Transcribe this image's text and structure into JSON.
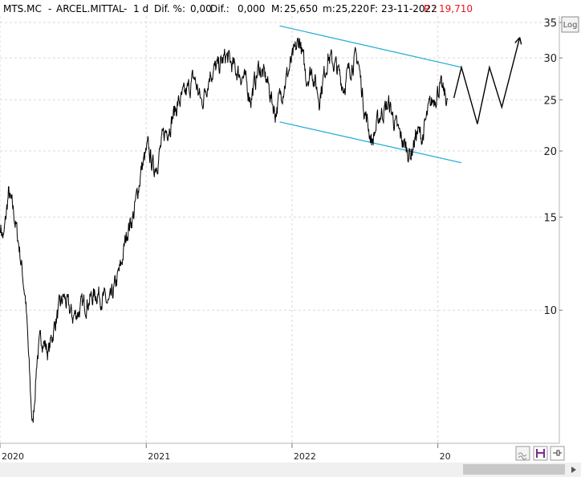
{
  "header": {
    "ticker": "MTS.MC",
    "name": "ARCEL.MITTAL",
    "period": "1 d",
    "dif_pct_label": "Dif. %:",
    "dif_pct": "0,00",
    "dif_label": "Dif.:",
    "dif": "0,000",
    "max_label": "M:",
    "max": "25,650",
    "min_label": "m:",
    "min": "25,220",
    "date_label": "F:",
    "date": "23-11-2022",
    "price_label": "P :",
    "price": "19,710"
  },
  "buttons": {
    "log_label": "Log"
  },
  "chart_data": {
    "type": "line",
    "y_scale": "log",
    "ylim": [
      5.6,
      36
    ],
    "y_ticks": [
      10,
      15,
      20,
      25,
      30,
      35
    ],
    "x_ticks": [
      "2020",
      "2021",
      "2022",
      "20"
    ],
    "xlim": [
      "2020-01-01",
      "2023-11-01"
    ],
    "grid": true,
    "colors": {
      "price": "#000000",
      "channel": "#1fa9d6",
      "price_label": "#e8141c"
    },
    "series": [
      {
        "values_anchors": [
          [
            "2020-01-02",
            14.5
          ],
          [
            "2020-01-10",
            13.6
          ],
          [
            "2020-01-22",
            16.6
          ],
          [
            "2020-02-05",
            15.2
          ],
          [
            "2020-02-18",
            13.2
          ],
          [
            "2020-03-05",
            10.5
          ],
          [
            "2020-03-18",
            6.8
          ],
          [
            "2020-03-23",
            6.0
          ],
          [
            "2020-04-03",
            8.2
          ],
          [
            "2020-04-15",
            8.9
          ],
          [
            "2020-05-01",
            8.3
          ],
          [
            "2020-05-20",
            9.6
          ],
          [
            "2020-06-08",
            10.6
          ],
          [
            "2020-07-01",
            9.7
          ],
          [
            "2020-08-01",
            10.3
          ],
          [
            "2020-09-01",
            10.8
          ],
          [
            "2020-10-01",
            10.2
          ],
          [
            "2020-10-30",
            12.1
          ],
          [
            "2020-11-15",
            14.2
          ],
          [
            "2020-12-01",
            15.2
          ],
          [
            "2020-12-20",
            18.5
          ],
          [
            "2021-01-05",
            20.2
          ],
          [
            "2021-01-20",
            18.5
          ],
          [
            "2021-02-01",
            19.5
          ],
          [
            "2021-02-15",
            21.5
          ],
          [
            "2021-03-01",
            22.5
          ],
          [
            "2021-03-20",
            24.5
          ],
          [
            "2021-04-10",
            25.6
          ],
          [
            "2021-05-01",
            27.5
          ],
          [
            "2021-05-20",
            24.6
          ],
          [
            "2021-06-10",
            28.2
          ],
          [
            "2021-07-01",
            28.8
          ],
          [
            "2021-07-20",
            30.2
          ],
          [
            "2021-08-10",
            28.6
          ],
          [
            "2021-09-01",
            27.6
          ],
          [
            "2021-09-20",
            25.2
          ],
          [
            "2021-10-10",
            28.8
          ],
          [
            "2021-10-30",
            27.2
          ],
          [
            "2021-11-20",
            23.6
          ],
          [
            "2021-12-10",
            26.5
          ],
          [
            "2022-01-01",
            29.6
          ],
          [
            "2022-01-20",
            32.5
          ],
          [
            "2022-02-05",
            27.5
          ],
          [
            "2022-02-20",
            28.5
          ],
          [
            "2022-03-10",
            25.2
          ],
          [
            "2022-04-01",
            30.2
          ],
          [
            "2022-04-20",
            29.0
          ],
          [
            "2022-05-10",
            26.5
          ],
          [
            "2022-06-01",
            29.5
          ],
          [
            "2022-06-15",
            29.8
          ],
          [
            "2022-07-01",
            24.0
          ],
          [
            "2022-07-20",
            20.8
          ],
          [
            "2022-08-10",
            23.5
          ],
          [
            "2022-09-01",
            24.5
          ],
          [
            "2022-09-20",
            22.0
          ],
          [
            "2022-10-10",
            20.5
          ],
          [
            "2022-10-25",
            19.7
          ],
          [
            "2022-11-10",
            21.8
          ],
          [
            "2022-11-23",
            21.2
          ],
          [
            "2022-12-10",
            24.0
          ],
          [
            "2023-01-05",
            26.5
          ],
          [
            "2023-01-25",
            25.0
          ]
        ]
      }
    ],
    "channel": {
      "upper": [
        [
          "2021-12-01",
          34.5
        ],
        [
          "2023-03-01",
          28.8
        ]
      ],
      "lower": [
        [
          "2021-12-01",
          22.7
        ],
        [
          "2023-03-01",
          19.0
        ]
      ]
    },
    "projection": [
      [
        "2023-02-10",
        25.2
      ],
      [
        "2023-03-01",
        28.8
      ],
      [
        "2023-04-10",
        22.5
      ],
      [
        "2023-05-10",
        28.8
      ],
      [
        "2023-06-10",
        24.2
      ],
      [
        "2023-07-25",
        32.8
      ]
    ]
  }
}
